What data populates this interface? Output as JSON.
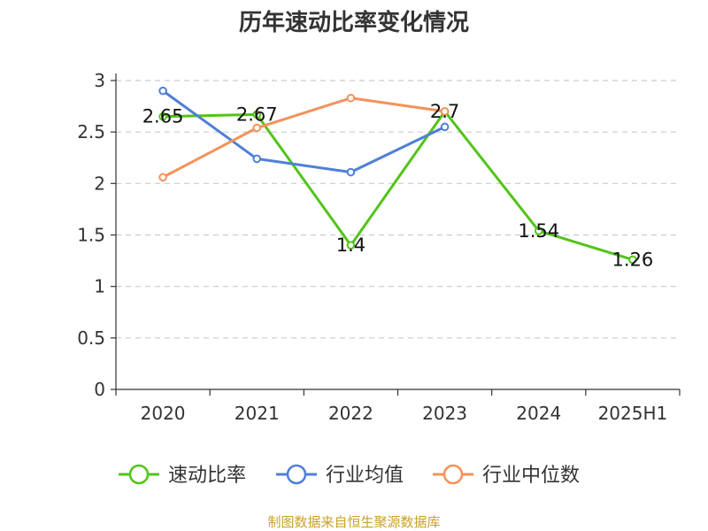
{
  "chart_data": {
    "type": "line",
    "title": "历年速动比率变化情况",
    "categories": [
      "2020",
      "2021",
      "2022",
      "2023",
      "2024",
      "2025H1"
    ],
    "ylim": [
      0,
      3
    ],
    "yticks": [
      "0",
      "0.5",
      "1",
      "1.5",
      "2",
      "2.5",
      "3"
    ],
    "grid": true,
    "legend_position": "bottom",
    "series": [
      {
        "name": "速动比率",
        "color": "#52c41a",
        "values": [
          2.65,
          2.67,
          1.4,
          2.7,
          1.54,
          1.26
        ],
        "labels": [
          "2.65",
          "2.67",
          "1.4",
          "2.7",
          "1.54",
          "1.26"
        ]
      },
      {
        "name": "行业均值",
        "color": "#4e7fd8",
        "values": [
          2.9,
          2.24,
          2.11,
          2.55,
          null,
          null
        ]
      },
      {
        "name": "行业中位数",
        "color": "#f4925a",
        "values": [
          2.06,
          2.54,
          2.83,
          2.7,
          null,
          null
        ]
      }
    ],
    "source": "制图数据来自恒生聚源数据库"
  }
}
